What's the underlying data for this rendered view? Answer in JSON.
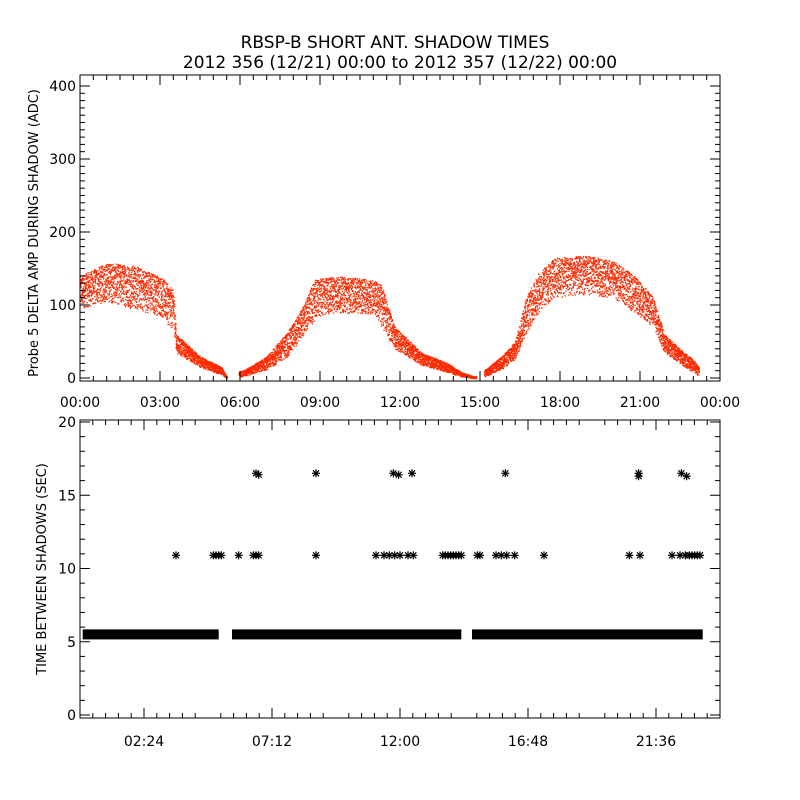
{
  "title_line1": "RBSP-B SHORT ANT. SHADOW TIMES",
  "title_line2": "2012 356 (12/21) 00:00 to 2012 357 (12/22) 00:00",
  "colors": {
    "amp_points": "#ff2a00",
    "times_points": "#000000",
    "axis": "#000000"
  },
  "chart_data": [
    {
      "type": "scatter",
      "name": "delta-amp",
      "ylabel": "Probe 5 DELTA AMP DURING SHADOW (ADC)",
      "xlabel": "",
      "xlim": [
        0,
        24
      ],
      "ylim": [
        0,
        400
      ],
      "yticks": [
        0,
        100,
        200,
        300,
        400
      ],
      "xticks": [
        0,
        3,
        6,
        9,
        12,
        15,
        18,
        21,
        24
      ],
      "xtick_labels": [
        "00:00",
        "03:00",
        "06:00",
        "09:00",
        "12:00",
        "15:00",
        "18:00",
        "21:00",
        "00:00"
      ],
      "envelope": {
        "hours": [
          0.0,
          1.0,
          2.0,
          3.0,
          3.5,
          3.6,
          4.5,
          5.3,
          5.5,
          6.2,
          7.0,
          7.8,
          8.3,
          8.8,
          9.5,
          11.0,
          11.3,
          11.8,
          12.8,
          13.8,
          14.3,
          14.8,
          15.2,
          15.8,
          16.3,
          16.7,
          17.2,
          17.8,
          19.0,
          20.0,
          20.8,
          21.5,
          21.9,
          22.5,
          23.0,
          23.2
        ],
        "upper": [
          140,
          158,
          155,
          140,
          120,
          60,
          30,
          15,
          2,
          12,
          30,
          65,
          95,
          135,
          140,
          135,
          128,
          70,
          35,
          20,
          8,
          2,
          12,
          30,
          50,
          110,
          145,
          165,
          168,
          160,
          140,
          110,
          60,
          40,
          25,
          15
        ],
        "lower": [
          95,
          105,
          95,
          85,
          65,
          35,
          15,
          5,
          0,
          3,
          12,
          30,
          55,
          80,
          90,
          88,
          70,
          40,
          18,
          8,
          2,
          0,
          3,
          12,
          25,
          60,
          90,
          110,
          115,
          110,
          90,
          70,
          35,
          20,
          8,
          3
        ],
        "gaps": [
          [
            5.5,
            5.95
          ],
          [
            14.85,
            15.15
          ]
        ]
      }
    },
    {
      "type": "scatter",
      "name": "time-between-shadows",
      "ylabel": "TIME BETWEEN SHADOWS (SEC)",
      "xlabel": "",
      "xlim": [
        0,
        24
      ],
      "ylim": [
        0,
        20
      ],
      "yticks": [
        0,
        5,
        10,
        15,
        20
      ],
      "xticks": [
        2.4,
        7.2,
        12.0,
        16.8,
        21.6
      ],
      "xtick_labels": [
        "02:24",
        "07:12",
        "12:00",
        "16:48",
        "21:36"
      ],
      "baseline_value": 5.5,
      "baseline_segments": [
        [
          0.1,
          5.2
        ],
        [
          5.7,
          14.3
        ],
        [
          14.7,
          23.35
        ]
      ],
      "points": [
        {
          "t": 3.6,
          "v": 10.9
        },
        {
          "t": 5.0,
          "v": 10.9
        },
        {
          "t": 5.1,
          "v": 10.9
        },
        {
          "t": 5.2,
          "v": 10.9
        },
        {
          "t": 5.3,
          "v": 10.9
        },
        {
          "t": 5.95,
          "v": 10.9
        },
        {
          "t": 6.5,
          "v": 10.9
        },
        {
          "t": 6.6,
          "v": 10.9
        },
        {
          "t": 6.7,
          "v": 10.9
        },
        {
          "t": 6.6,
          "v": 16.5
        },
        {
          "t": 6.7,
          "v": 16.4
        },
        {
          "t": 8.85,
          "v": 10.9
        },
        {
          "t": 8.85,
          "v": 16.5
        },
        {
          "t": 11.1,
          "v": 10.9
        },
        {
          "t": 11.4,
          "v": 10.9
        },
        {
          "t": 11.6,
          "v": 10.9
        },
        {
          "t": 11.8,
          "v": 10.9
        },
        {
          "t": 12.0,
          "v": 10.9
        },
        {
          "t": 12.3,
          "v": 10.9
        },
        {
          "t": 11.75,
          "v": 16.5
        },
        {
          "t": 11.95,
          "v": 16.4
        },
        {
          "t": 12.45,
          "v": 16.5
        },
        {
          "t": 12.5,
          "v": 10.9
        },
        {
          "t": 13.6,
          "v": 10.9
        },
        {
          "t": 13.7,
          "v": 10.9
        },
        {
          "t": 13.8,
          "v": 10.9
        },
        {
          "t": 13.9,
          "v": 10.9
        },
        {
          "t": 14.0,
          "v": 10.9
        },
        {
          "t": 14.1,
          "v": 10.9
        },
        {
          "t": 14.2,
          "v": 10.9
        },
        {
          "t": 14.3,
          "v": 10.9
        },
        {
          "t": 14.9,
          "v": 10.9
        },
        {
          "t": 15.0,
          "v": 10.9
        },
        {
          "t": 15.6,
          "v": 10.9
        },
        {
          "t": 15.8,
          "v": 10.9
        },
        {
          "t": 16.0,
          "v": 10.9
        },
        {
          "t": 15.95,
          "v": 16.5
        },
        {
          "t": 16.3,
          "v": 10.9
        },
        {
          "t": 17.4,
          "v": 10.9
        },
        {
          "t": 20.6,
          "v": 10.9
        },
        {
          "t": 20.95,
          "v": 16.5
        },
        {
          "t": 20.95,
          "v": 16.3
        },
        {
          "t": 21.0,
          "v": 10.9
        },
        {
          "t": 22.2,
          "v": 10.9
        },
        {
          "t": 22.5,
          "v": 10.9
        },
        {
          "t": 22.55,
          "v": 16.5
        },
        {
          "t": 22.75,
          "v": 16.3
        },
        {
          "t": 22.7,
          "v": 10.9
        },
        {
          "t": 22.85,
          "v": 10.9
        },
        {
          "t": 22.95,
          "v": 10.9
        },
        {
          "t": 23.05,
          "v": 10.9
        },
        {
          "t": 23.15,
          "v": 10.9
        },
        {
          "t": 23.25,
          "v": 10.9
        }
      ]
    }
  ]
}
